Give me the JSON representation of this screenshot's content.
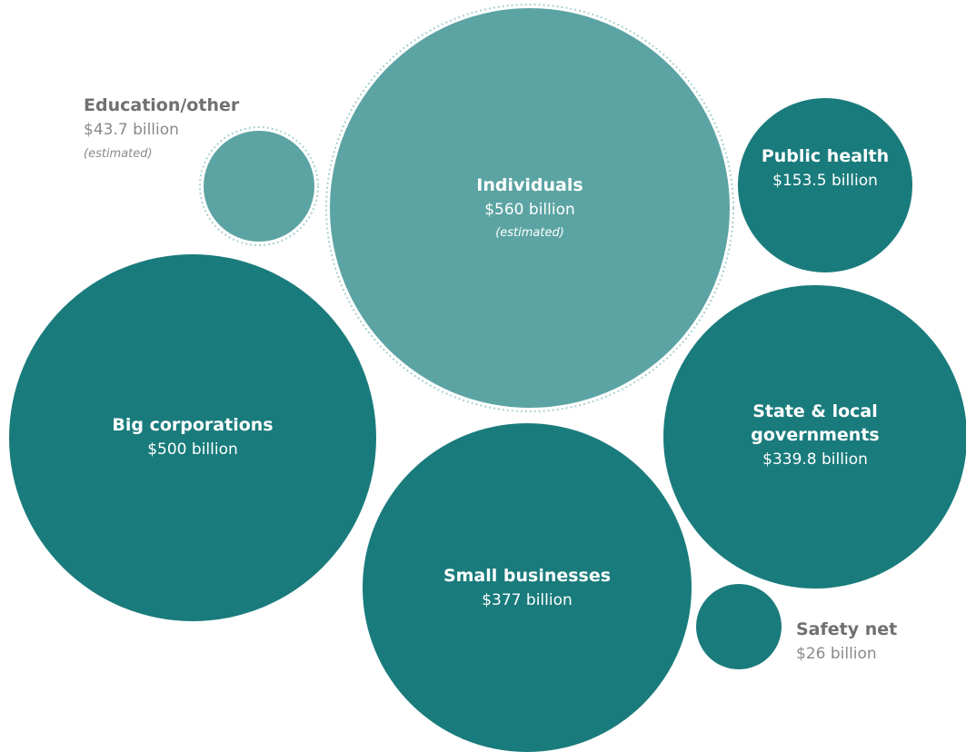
{
  "colors": {
    "estimated_fill": "#5ba4a3",
    "actual_fill": "#1a7b7c",
    "inside_text": "#ffffff",
    "outside_text": "#8a8a8a",
    "outside_name_text": "#707070",
    "dotted_border": "#a9d1d0"
  },
  "chart_data": {
    "type": "bubble",
    "value_unit": "billion USD",
    "items": [
      {
        "name": "Education/other",
        "value_text": "$43.7 billion",
        "value": 43.7,
        "note": "(estimated)",
        "estimated": true
      },
      {
        "name": "Individuals",
        "value_text": "$560 billion",
        "value": 560,
        "note": "(estimated)",
        "estimated": true
      },
      {
        "name": "Public health",
        "value_text": "$153.5 billion",
        "value": 153.5,
        "note": "",
        "estimated": false
      },
      {
        "name": "Big corporations",
        "value_text": "$500 billion",
        "value": 500,
        "note": "",
        "estimated": false
      },
      {
        "name": "State & local governments",
        "name_lines": [
          "State & local",
          "governments"
        ],
        "value_text": "$339.8 billion",
        "value": 339.8,
        "note": "",
        "estimated": false
      },
      {
        "name": "Small businesses",
        "value_text": "$377 billion",
        "value": 377,
        "note": "",
        "estimated": false
      },
      {
        "name": "Safety net",
        "value_text": "$26 billion",
        "value": 26,
        "note": "",
        "estimated": false
      }
    ]
  }
}
